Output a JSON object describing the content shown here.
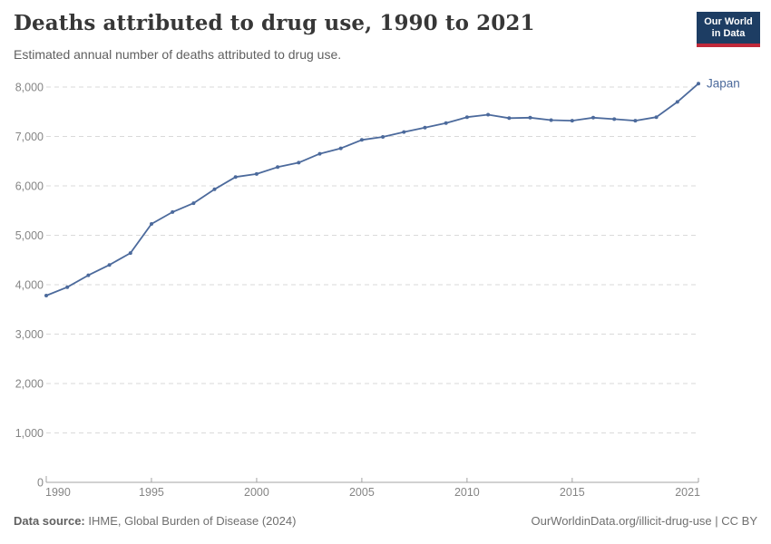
{
  "header": {
    "title": "Deaths attributed to drug use, 1990 to 2021",
    "subtitle": "Estimated annual number of deaths attributed to drug use.",
    "logo": {
      "line1": "Our World",
      "line2": "in Data",
      "bg_color": "#1d3d63",
      "bar_color": "#c0293a"
    }
  },
  "chart_data": {
    "type": "line",
    "title": "Deaths attributed to drug use, 1990 to 2021",
    "subtitle": "Estimated annual number of deaths attributed to drug use.",
    "xlabel": "",
    "ylabel": "",
    "xlim": [
      1990,
      2021
    ],
    "ylim": [
      0,
      8000
    ],
    "x_ticks": [
      1990,
      1995,
      2000,
      2005,
      2010,
      2015,
      2021
    ],
    "y_ticks": [
      0,
      1000,
      2000,
      3000,
      4000,
      5000,
      6000,
      7000,
      8000
    ],
    "grid": "horizontal-dashed",
    "legend_position": "end-of-line-label",
    "colors": {
      "gridline": "#dadada",
      "axis": "#a3a3a3",
      "tick_label": "#858585"
    },
    "series": [
      {
        "name": "Japan",
        "color": "#4c6a9c",
        "x": [
          1990,
          1991,
          1992,
          1993,
          1994,
          1995,
          1996,
          1997,
          1998,
          1999,
          2000,
          2001,
          2002,
          2003,
          2004,
          2005,
          2006,
          2007,
          2008,
          2009,
          2010,
          2011,
          2012,
          2013,
          2014,
          2015,
          2016,
          2017,
          2018,
          2019,
          2020,
          2021
        ],
        "values": [
          3780,
          3950,
          4190,
          4400,
          4640,
          5230,
          5470,
          5650,
          5930,
          6180,
          6240,
          6380,
          6470,
          6650,
          6760,
          6930,
          6990,
          7090,
          7180,
          7270,
          7390,
          7440,
          7370,
          7380,
          7330,
          7320,
          7380,
          7350,
          7320,
          7390,
          7700,
          8070
        ]
      }
    ]
  },
  "footer": {
    "source_label": "Data source:",
    "source_text": " IHME, Global Burden of Disease (2024)",
    "credit": "OurWorldinData.org/illicit-drug-use | CC BY"
  }
}
